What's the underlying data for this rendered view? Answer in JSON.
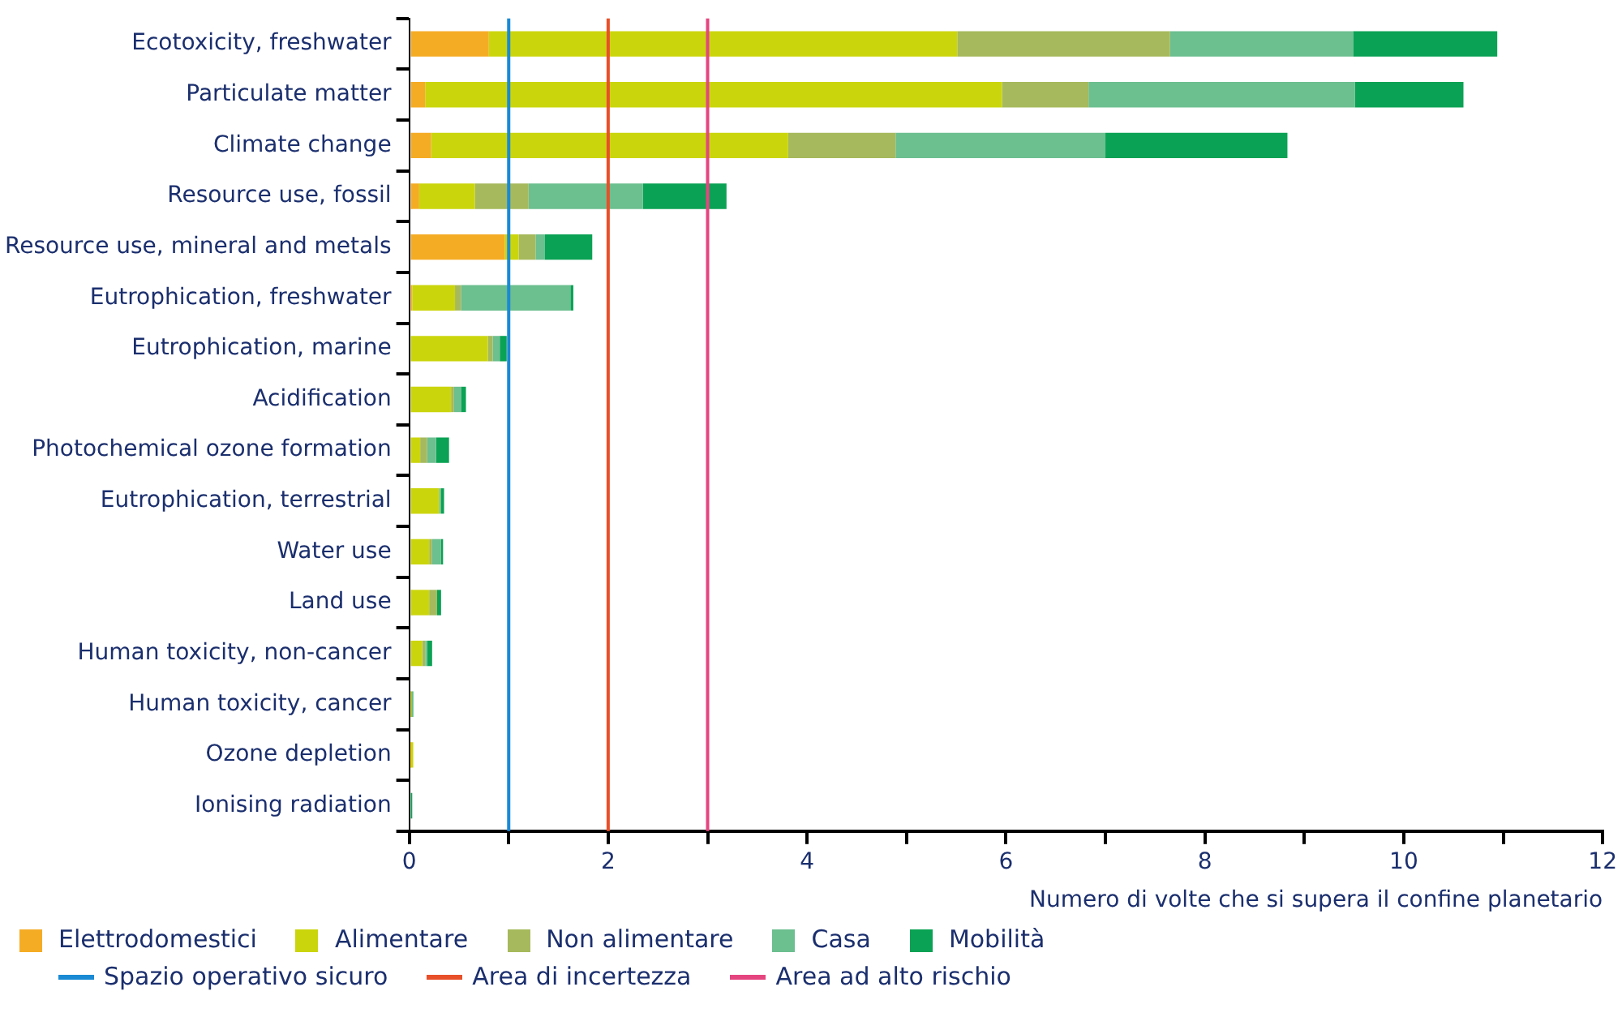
{
  "chart_data": {
    "type": "bar",
    "orientation": "horizontal",
    "stacked": true,
    "categories": [
      "Ecotoxicity, freshwater",
      "Particulate matter",
      "Climate change",
      "Resource use, fossil",
      "Resource use, mineral and metals",
      "Eutrophication, freshwater",
      "Eutrophication, marine",
      "Acidification",
      "Photochemical ozone formation",
      "Eutrophication, terrestrial",
      "Water use",
      "Land use",
      "Human toxicity, non-cancer",
      "Human toxicity, cancer",
      "Ozone depletion",
      "Ionising radiation"
    ],
    "series": [
      {
        "name": "Elettrodomestici",
        "color": "#f5ac25",
        "values": [
          0.8,
          0.16,
          0.22,
          0.1,
          0.96,
          0.03,
          0,
          0,
          0,
          0,
          0,
          0,
          0,
          0,
          0.01,
          0
        ]
      },
      {
        "name": "Alimentare",
        "color": "#cbd50c",
        "values": [
          4.71,
          5.8,
          3.59,
          0.56,
          0.14,
          0.43,
          0.79,
          0.42,
          0.11,
          0.3,
          0.2,
          0.2,
          0.13,
          0.01,
          0.03,
          0
        ]
      },
      {
        "name": "Non alimentare",
        "color": "#a6b95c",
        "values": [
          2.14,
          0.87,
          1.08,
          0.54,
          0.17,
          0.06,
          0.05,
          0.03,
          0.07,
          0,
          0.03,
          0.08,
          0.03,
          0.02,
          0,
          0
        ]
      },
      {
        "name": "Casa",
        "color": "#6cbf8f",
        "values": [
          1.84,
          2.68,
          2.11,
          1.15,
          0.09,
          1.1,
          0.07,
          0.07,
          0.09,
          0.02,
          0.09,
          0,
          0.02,
          0,
          0,
          0
        ]
      },
      {
        "name": "Mobilità",
        "color": "#0aa254",
        "values": [
          1.45,
          1.09,
          1.83,
          0.84,
          0.48,
          0.03,
          0.07,
          0.05,
          0.13,
          0.03,
          0.02,
          0.04,
          0.05,
          0.01,
          0,
          0.03
        ]
      }
    ],
    "xlim": [
      0,
      12
    ],
    "xticks": [
      0,
      {
        "value": 1,
        "label": null
      },
      2,
      {
        "value": 3,
        "label": null
      },
      4,
      {
        "value": 5,
        "label": null
      },
      6,
      {
        "value": 7,
        "label": null
      },
      8,
      {
        "value": 9,
        "label": null
      },
      10,
      {
        "value": 11,
        "label": null
      },
      12
    ],
    "xlabel": "Numero di volte che si supera il confine planetario",
    "ref_lines": [
      {
        "axis": "x",
        "value": 1,
        "label": "Spazio operativo sicuro",
        "color": "#1a8ad4"
      },
      {
        "axis": "x",
        "value": 2,
        "label": "Area di incertezza",
        "color": "#e8502a"
      },
      {
        "axis": "x",
        "value": 3,
        "label": "Area ad alto rischio",
        "color": "#e5457f"
      }
    ],
    "grid": false,
    "legend": "bottom"
  }
}
